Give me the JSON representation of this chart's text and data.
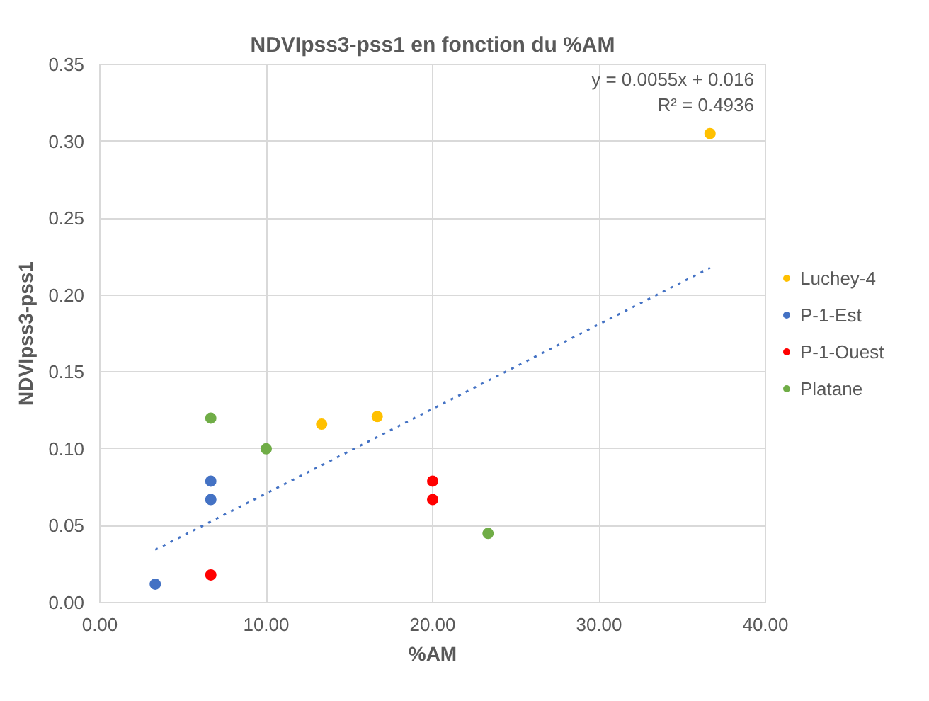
{
  "chart_data": {
    "type": "scatter",
    "title": "NDVIpss3-pss1 en fonction du %AM",
    "xlabel": "%AM",
    "ylabel": "NDVIpss3-pss1",
    "xlim": [
      0,
      40
    ],
    "ylim": [
      0,
      0.35
    ],
    "xticks": [
      {
        "value": 0,
        "label": "0.00"
      },
      {
        "value": 10,
        "label": "10.00"
      },
      {
        "value": 20,
        "label": "20.00"
      },
      {
        "value": 30,
        "label": "30.00"
      },
      {
        "value": 40,
        "label": "40.00"
      }
    ],
    "yticks": [
      {
        "value": 0,
        "label": "0.00"
      },
      {
        "value": 0.05,
        "label": "0.05"
      },
      {
        "value": 0.1,
        "label": "0.10"
      },
      {
        "value": 0.15,
        "label": "0.15"
      },
      {
        "value": 0.2,
        "label": "0.20"
      },
      {
        "value": 0.25,
        "label": "0.25"
      },
      {
        "value": 0.3,
        "label": "0.30"
      },
      {
        "value": 0.35,
        "label": "0.35"
      }
    ],
    "grid": true,
    "legend": "right",
    "marker": "circle",
    "annotations": [
      "y = 0.0055x + 0.016",
      "R² = 0.4936"
    ],
    "series": [
      {
        "name": "Luchey-4",
        "color": "#ffc000",
        "x": [
          13.33,
          16.67,
          36.67
        ],
        "values": [
          0.116,
          0.121,
          0.305
        ]
      },
      {
        "name": "P-1-Est",
        "color": "#4472c4",
        "x": [
          3.33,
          6.67,
          6.67
        ],
        "values": [
          0.012,
          0.067,
          0.079
        ]
      },
      {
        "name": "P-1-Ouest",
        "color": "#ff0000",
        "x": [
          6.67,
          20,
          20
        ],
        "values": [
          0.018,
          0.067,
          0.079
        ]
      },
      {
        "name": "Platane",
        "color": "#70ad47",
        "x": [
          6.67,
          10,
          23.33
        ],
        "values": [
          0.12,
          0.1,
          0.045
        ]
      },
      {
        "type": "line",
        "color": "#4472c4",
        "line_style": "dotted",
        "marker": "none",
        "x": [
          3.33,
          36.67
        ],
        "values": [
          0.0343,
          0.2177
        ]
      }
    ]
  }
}
